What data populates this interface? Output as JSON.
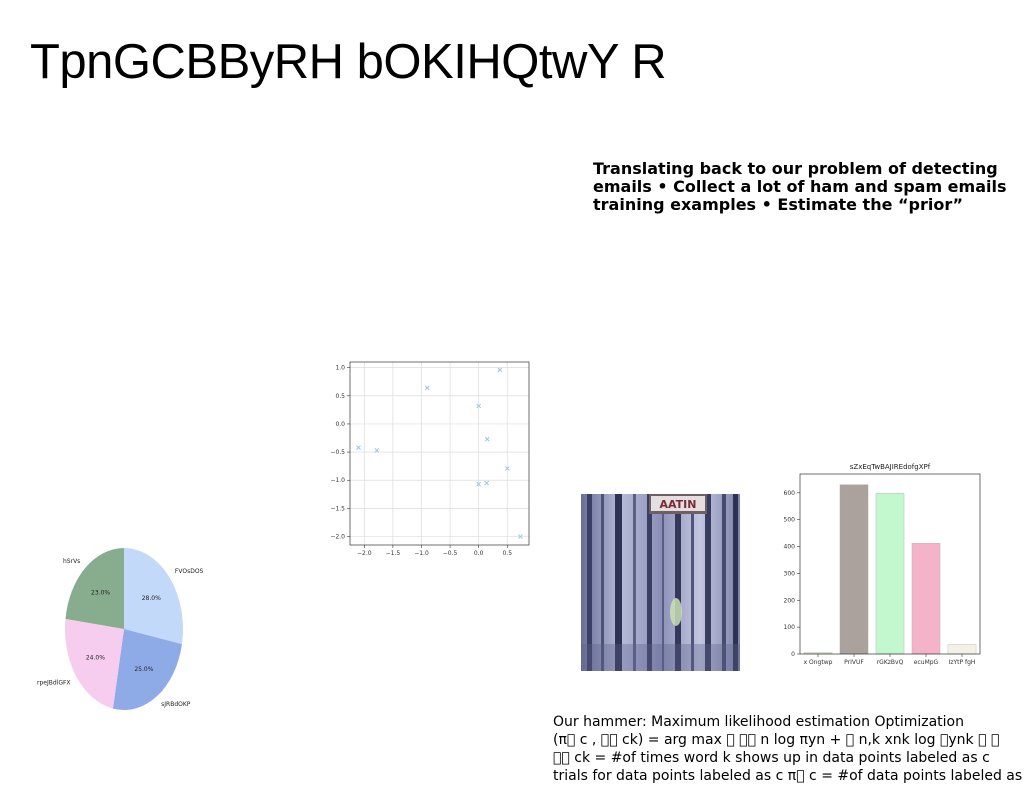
{
  "slide": {
    "title": "TpnGCBByRH bOKIHQtwY R",
    "paragraph": "Translating back to our problem of detecting emails • Collect a lot of ham and spam emails training examples • Estimate the “prior”",
    "bottom_lines": [
      "Our hammer: Maximum likelihood estimation Optimization",
      "(π\u0000 c , \u0000\u0000 ck) = arg max \u0000 \u0000\u0000 n log πyn + \u0000 n,k xnk log \u0000ynk \u0000 \u0000",
      "\u0000\u0000 ck = #of times word k shows up in data points labeled as c",
      "trials for data points labeled as c π\u0000 c = #of data points labeled as"
    ]
  },
  "photo": {
    "sign_text": "AATIN"
  },
  "chart_data": [
    {
      "type": "pie",
      "labels": [
        "FVOsDOS",
        "sJRBdOKP",
        "rpeJBdlGFX",
        "hSrVs"
      ],
      "values": [
        28.0,
        25.0,
        24.0,
        23.0
      ],
      "value_labels": [
        "28.0%",
        "25.0%",
        "24.0%",
        "23.0%"
      ],
      "colors": [
        "#c2d9fa",
        "#8eabe8",
        "#f7cdef",
        "#87ad8e"
      ],
      "start_angle_deg": 90,
      "direction": "clockwise"
    },
    {
      "type": "scatter",
      "marker": "x",
      "color": "#9dc3ea",
      "points": [
        {
          "x": -2.1,
          "y": -0.42
        },
        {
          "x": -1.78,
          "y": -0.47
        },
        {
          "x": -0.9,
          "y": 0.64
        },
        {
          "x": 0.0,
          "y": 0.32
        },
        {
          "x": 0.37,
          "y": 0.96
        },
        {
          "x": 0.15,
          "y": -0.27
        },
        {
          "x": 0.5,
          "y": -0.79
        },
        {
          "x": 0.0,
          "y": -1.07
        },
        {
          "x": 0.14,
          "y": -1.05
        },
        {
          "x": 0.73,
          "y": -2.0
        }
      ],
      "xlim": [
        -2.25,
        0.88
      ],
      "ylim": [
        -2.15,
        1.1
      ],
      "xticks": [
        -2.0,
        -1.5,
        -1.0,
        -0.5,
        0.0,
        0.5
      ],
      "xtick_labels": [
        "−2.0",
        "−1.5",
        "−1.0",
        "−0.5",
        "0.0",
        "0.5"
      ],
      "yticks": [
        1.0,
        0.5,
        0.0,
        -0.5,
        -1.0,
        -1.5,
        -2.0
      ],
      "ytick_labels": [
        "1.0",
        "0.5",
        "0.0",
        "−0.5",
        "−1.0",
        "−1.5",
        "−2.0"
      ],
      "grid": true
    },
    {
      "type": "bar",
      "title": "sZxEqTwBAJIREdofgXPf",
      "categories": [
        "x Ongtwp",
        "PrIVUF",
        "rGKzBvQ",
        "ecuMpG",
        "IzYtP fgH"
      ],
      "values": [
        5,
        630,
        598,
        412,
        35
      ],
      "colors": [
        "#c5e8b6",
        "#aba19d",
        "#c3f7cd",
        "#f4b3c8",
        "#f3f1e6"
      ],
      "ylim": [
        0,
        670
      ],
      "yticks": [
        0,
        100,
        200,
        300,
        400,
        500,
        600
      ],
      "ytick_labels": [
        "0",
        "100",
        "200",
        "300",
        "400",
        "500",
        "600"
      ],
      "grid": false
    }
  ]
}
